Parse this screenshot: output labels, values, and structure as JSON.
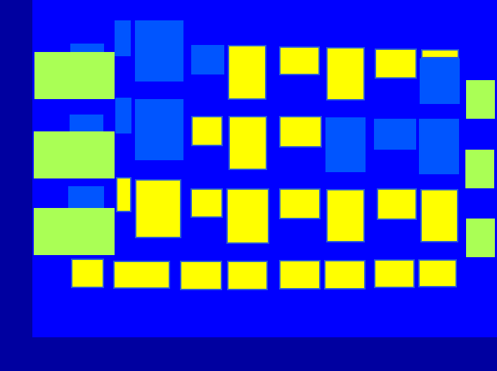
{
  "colors": {
    "outer_background": "#0000a0",
    "board_background": "#0000ff",
    "light_blue_block": "#0055ff",
    "green_block": "#aaff55",
    "yellow_block": "#ffff00",
    "yellow_border": "#2a5cd6"
  },
  "block_types": [
    "light-blue",
    "green",
    "yellow"
  ]
}
